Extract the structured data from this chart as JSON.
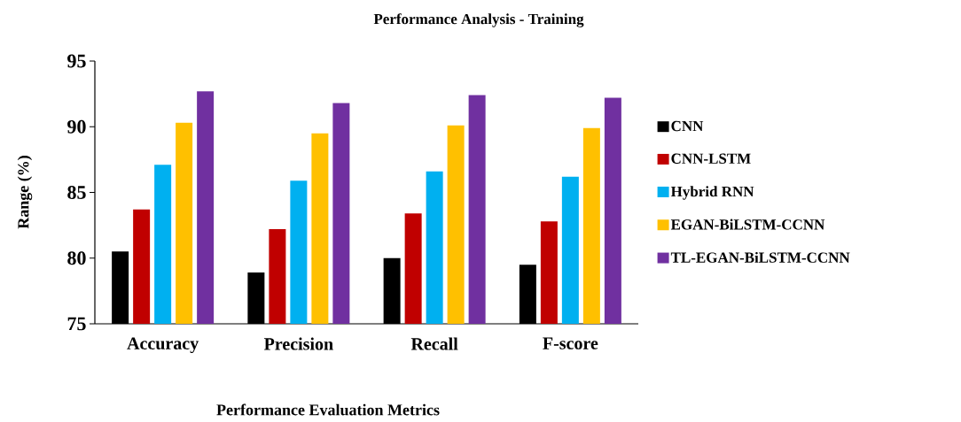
{
  "chart_data": {
    "type": "bar",
    "title": "Performance Analysis - Training",
    "xlabel": "Performance Evaluation Metrics",
    "ylabel": "Range (%)",
    "categories": [
      "Accuracy",
      "Precision",
      "Recall",
      "F-score"
    ],
    "series": [
      {
        "name": "CNN",
        "color": "#000000",
        "values": [
          80.5,
          78.9,
          80.0,
          79.5
        ]
      },
      {
        "name": "CNN-LSTM",
        "color": "#c00000",
        "values": [
          83.7,
          82.2,
          83.4,
          82.8
        ]
      },
      {
        "name": "Hybrid RNN",
        "color": "#00b0f0",
        "values": [
          87.1,
          85.9,
          86.6,
          86.2
        ]
      },
      {
        "name": "EGAN-BiLSTM-CCNN",
        "color": "#ffc000",
        "values": [
          90.3,
          89.5,
          90.1,
          89.9
        ]
      },
      {
        "name": "TL-EGAN-BiLSTM-CCNN",
        "color": "#7030a0",
        "values": [
          92.7,
          91.8,
          92.4,
          92.2
        ]
      }
    ],
    "ylim": [
      75,
      95
    ],
    "yticks": [
      75,
      80,
      85,
      90,
      95
    ],
    "legend": "right"
  }
}
